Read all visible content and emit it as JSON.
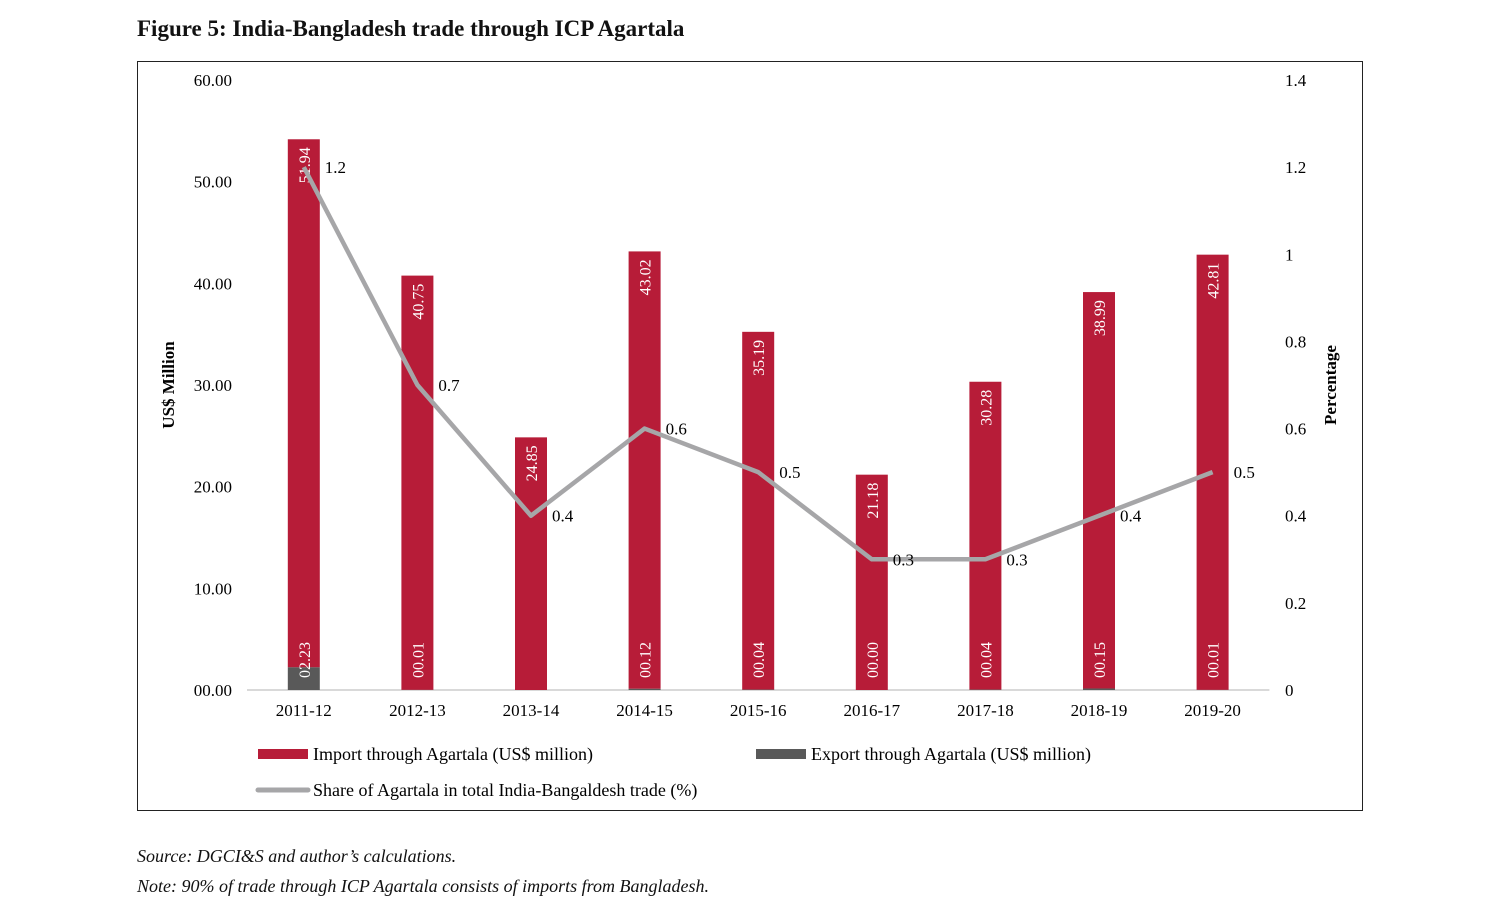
{
  "title": "Figure 5: India-Bangladesh trade through ICP Agartala",
  "source": "Source: DGCI&S and author’s calculations.",
  "note": "Note: 90% of trade through ICP Agartala consists of imports from Bangladesh.",
  "chart_data": {
    "type": "bar",
    "stacked": true,
    "categories": [
      "2011-12",
      "2012-13",
      "2013-14",
      "2014-15",
      "2015-16",
      "2016-17",
      "2017-18",
      "2018-19",
      "2019-20"
    ],
    "ylabel": "US$ Million",
    "y2label": "Percentage",
    "ylim": [
      0,
      60
    ],
    "y2lim": [
      0,
      1.4
    ],
    "yticks": [
      "00.00",
      "10.00",
      "20.00",
      "30.00",
      "40.00",
      "50.00",
      "60.00"
    ],
    "y2ticks": [
      "0",
      "0.2",
      "0.4",
      "0.6",
      "0.8",
      "1",
      "1.2",
      "1.4"
    ],
    "grid": false,
    "legend_position": "bottom",
    "series": [
      {
        "name": "Import through Agartala (US$ million)",
        "type": "bar",
        "color": "#b71c38",
        "values": [
          51.94,
          40.75,
          24.85,
          43.02,
          35.19,
          21.18,
          30.28,
          38.99,
          42.81
        ],
        "labels": [
          "51.94",
          "40.75",
          "24.85",
          "43.02",
          "35.19",
          "21.18",
          "30.28",
          "38.99",
          "42.81"
        ]
      },
      {
        "name": "Export through Agartala (US$ million)",
        "type": "bar",
        "color": "#595959",
        "values": [
          2.23,
          0.01,
          null,
          0.12,
          0.04,
          0.0,
          0.04,
          0.15,
          0.01
        ],
        "labels": [
          "02.23",
          "00.01",
          "",
          "00.12",
          "00.04",
          "00.00",
          "00.04",
          "00.15",
          "00.01"
        ]
      },
      {
        "name": "Share of Agartala in total India-Bangaldesh trade (%)",
        "type": "line",
        "axis": "right",
        "color": "#a6a6a8",
        "values": [
          1.2,
          0.7,
          0.4,
          0.6,
          0.5,
          0.3,
          0.3,
          0.4,
          0.5
        ],
        "labels": [
          "1.2",
          "0.7",
          "0.4",
          "0.6",
          "0.5",
          "0.3",
          "0.3",
          "0.4",
          "0.5"
        ]
      }
    ]
  }
}
